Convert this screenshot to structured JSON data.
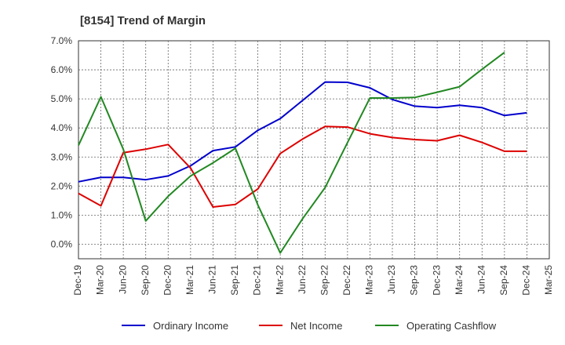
{
  "chart_data": {
    "type": "line",
    "title": "[8154]  Trend of Margin",
    "xlabel": "",
    "ylabel": "",
    "x_ticks": [
      "Dec-19",
      "Mar-20",
      "Jun-20",
      "Sep-20",
      "Dec-20",
      "Mar-21",
      "Jun-21",
      "Sep-21",
      "Dec-21",
      "Mar-22",
      "Jun-22",
      "Sep-22",
      "Dec-22",
      "Mar-23",
      "Jun-23",
      "Sep-23",
      "Dec-23",
      "Mar-24",
      "Jun-24",
      "Sep-24",
      "Dec-24",
      "Mar-25"
    ],
    "y_ticks": [
      "7.0%",
      "6.0%",
      "5.0%",
      "4.0%",
      "3.0%",
      "2.0%",
      "1.0%",
      "0.0%"
    ],
    "ylim": [
      -0.5,
      7.0
    ],
    "grid": true,
    "legend_position": "bottom",
    "series": [
      {
        "name": "Ordinary Income",
        "color": "#0000cc",
        "values": [
          2.15,
          2.3,
          2.3,
          2.22,
          2.35,
          2.7,
          3.22,
          3.35,
          3.92,
          4.32,
          4.95,
          5.58,
          5.57,
          5.38,
          4.98,
          4.75,
          4.7,
          4.78,
          4.7,
          4.43,
          4.52,
          null
        ]
      },
      {
        "name": "Net Income",
        "color": "#dd0000",
        "values": [
          1.75,
          1.32,
          3.15,
          3.27,
          3.43,
          2.62,
          1.28,
          1.37,
          1.9,
          3.12,
          3.62,
          4.05,
          4.03,
          3.8,
          3.67,
          3.6,
          3.56,
          3.75,
          3.5,
          3.2,
          3.2,
          null
        ]
      },
      {
        "name": "Operating Cashflow",
        "color": "#228822",
        "values": [
          3.4,
          5.07,
          3.27,
          0.8,
          1.65,
          2.35,
          2.8,
          3.3,
          1.35,
          -0.3,
          0.88,
          1.95,
          3.5,
          5.03,
          5.03,
          5.05,
          5.23,
          5.42,
          6.02,
          6.6,
          null,
          null
        ]
      }
    ]
  }
}
